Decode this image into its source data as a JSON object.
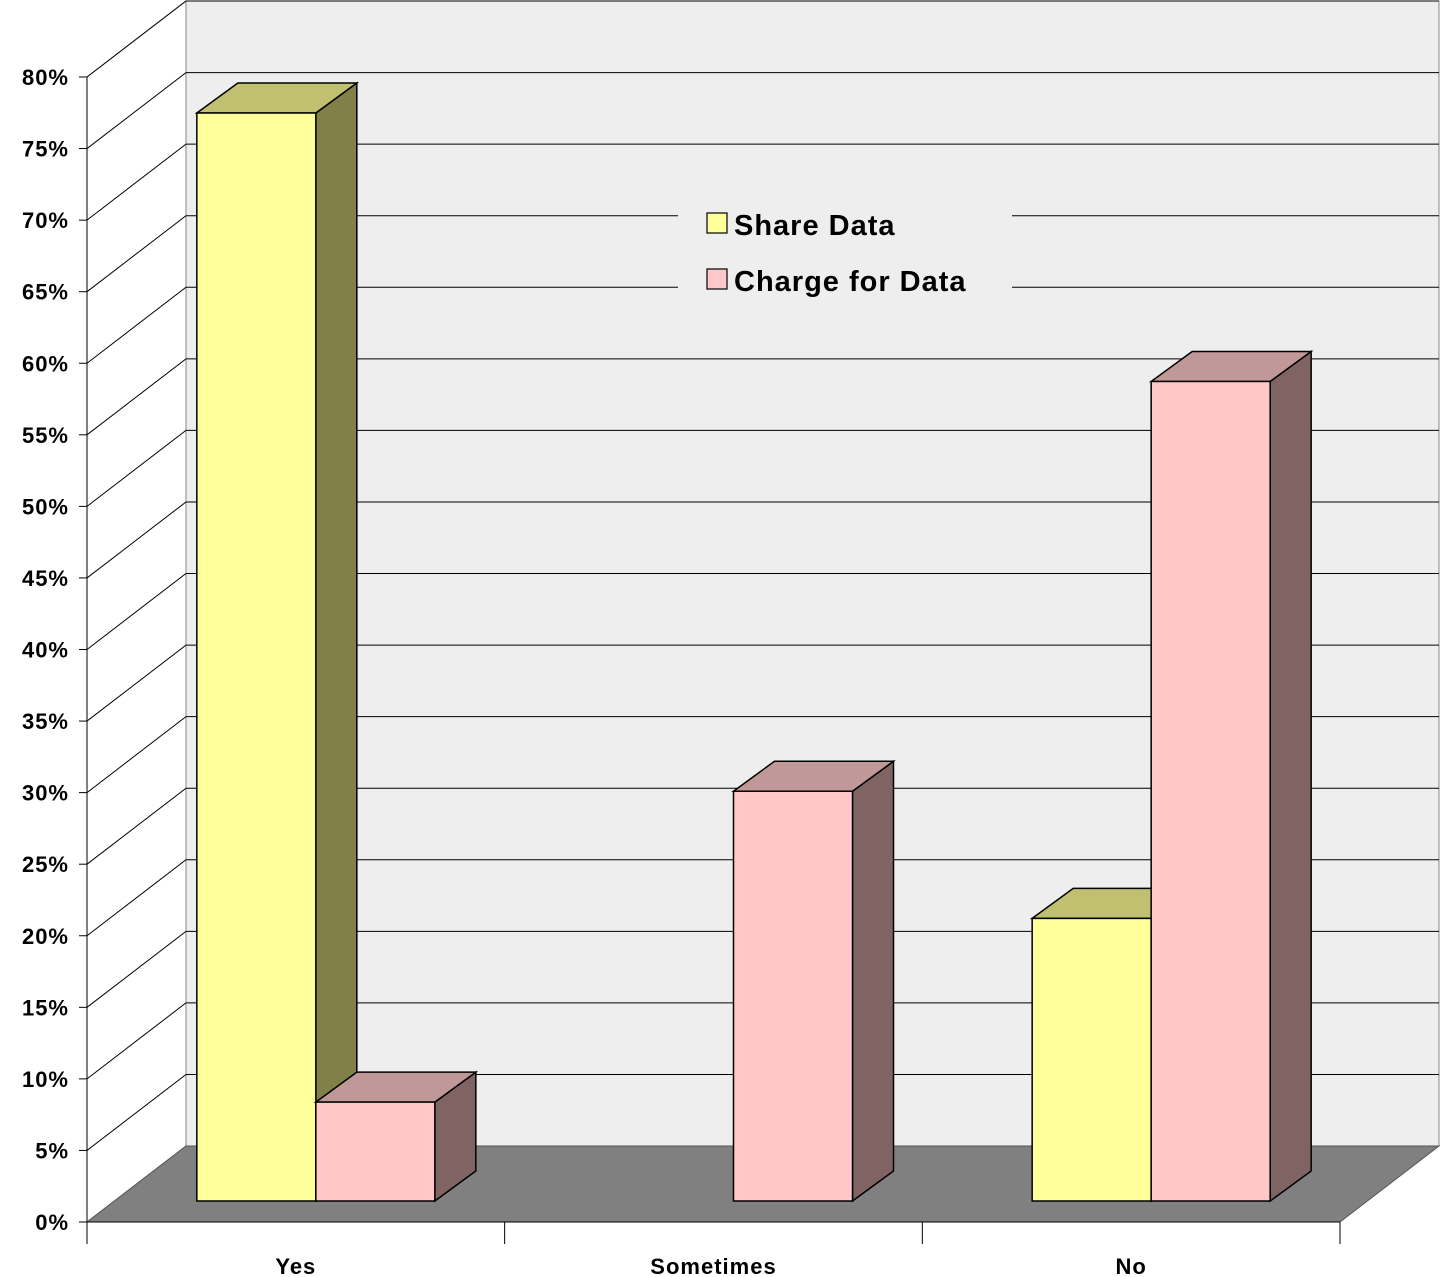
{
  "chart_data": {
    "type": "bar",
    "categories": [
      "Yes",
      "Sometimes",
      "No"
    ],
    "series": [
      {
        "name": "Share Data",
        "values": [
          77,
          0,
          20
        ],
        "color": "#ffff99",
        "side_color": "#808048",
        "top_color": "#c0c070"
      },
      {
        "name": "Charge for Data",
        "values": [
          7,
          29,
          58
        ],
        "color": "#ffc8c8",
        "side_color": "#806464",
        "top_color": "#c09898"
      }
    ],
    "y_ticks": [
      "0%",
      "5%",
      "10%",
      "15%",
      "20%",
      "25%",
      "30%",
      "35%",
      "40%",
      "45%",
      "50%",
      "55%",
      "60%",
      "65%",
      "70%",
      "75%",
      "80%"
    ],
    "ylim": [
      0,
      80
    ],
    "y_unit": "%",
    "grid": true,
    "legend_position": "top-center",
    "style": "3d-clustered-column",
    "colors": {
      "back_wall": "#eeeeee",
      "floor": "#808080",
      "gridline": "#000000"
    }
  }
}
